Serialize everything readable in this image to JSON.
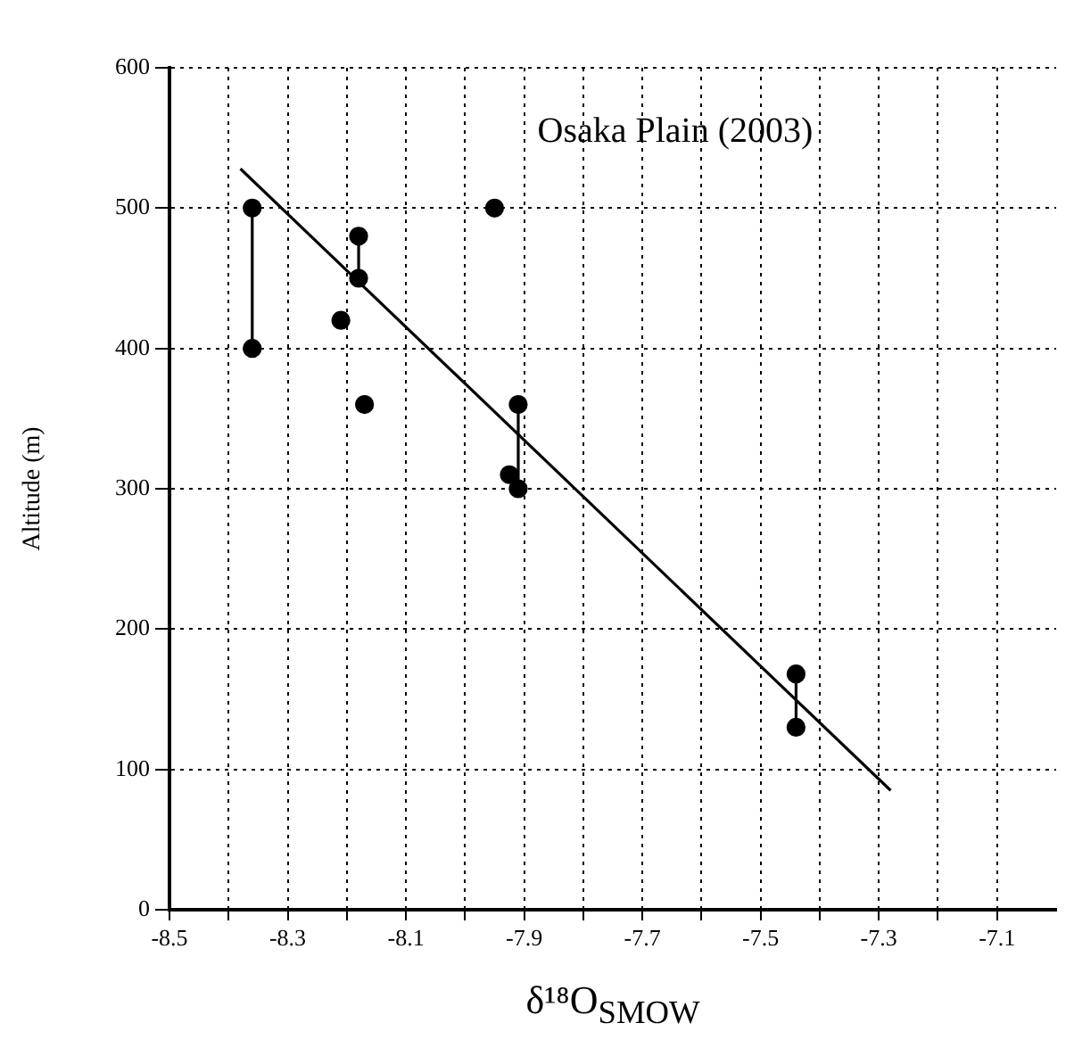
{
  "chart_data": {
    "type": "scatter",
    "annotations": [
      "Osaka Plain (2003)"
    ],
    "xlabel": "δ¹⁸O$_{SMOW}$",
    "ylabel": "Altitude (m)",
    "xlim": [
      -8.5,
      -7.0
    ],
    "xticks": [
      -8.5,
      {
        "value": -8.4,
        "label": null
      },
      -8.3,
      {
        "value": -8.2,
        "label": null
      },
      -8.1,
      {
        "value": -8.0,
        "label": null
      },
      -7.9,
      {
        "value": -7.8,
        "label": null
      },
      -7.7,
      {
        "value": -7.6,
        "label": null
      },
      -7.5,
      {
        "value": -7.4,
        "label": null
      },
      -7.3,
      {
        "value": -7.2,
        "label": null
      },
      -7.1
    ],
    "ylim": [
      0,
      600
    ],
    "yticks": [
      0,
      100,
      200,
      300,
      400,
      500,
      600
    ],
    "grid": true,
    "legend": false,
    "series": [
      {
        "type": "scatter",
        "color": "#000000",
        "marker": "circle",
        "x": [
          -8.36,
          -8.36,
          -8.18,
          -8.18,
          -8.21,
          -8.17,
          -7.95,
          -7.91,
          -7.925,
          -7.91,
          -7.44,
          -7.44
        ],
        "values": [
          500,
          400,
          480,
          450,
          420,
          360,
          500,
          360,
          310,
          300,
          168,
          130
        ]
      },
      {
        "type": "line",
        "color": "#000000",
        "marker": "none",
        "x": [
          -8.36,
          -8.36
        ],
        "values": [
          500,
          400
        ]
      },
      {
        "type": "line",
        "color": "#000000",
        "marker": "none",
        "x": [
          -8.18,
          -8.18
        ],
        "values": [
          480,
          450
        ]
      },
      {
        "type": "line",
        "color": "#000000",
        "marker": "none",
        "x": [
          -7.91,
          -7.91
        ],
        "values": [
          360,
          300
        ]
      },
      {
        "type": "line",
        "color": "#000000",
        "marker": "none",
        "x": [
          -7.44,
          -7.44
        ],
        "values": [
          168,
          130
        ]
      },
      {
        "type": "line",
        "color": "#000000",
        "marker": "none",
        "x": [
          -8.38,
          -7.28
        ],
        "values": [
          528,
          85
        ]
      }
    ]
  }
}
